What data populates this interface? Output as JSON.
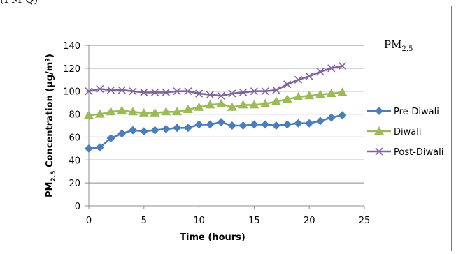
{
  "caption_fragment": "(PM Q)",
  "chart_data": {
    "type": "line",
    "title_main": "PM",
    "title_sub": "2.5",
    "xlabel": "Time (hours)",
    "ylabel_main": "PM",
    "ylabel_sub": "2.5",
    "ylabel_rest": " Concentration (µg/m³)",
    "xlim": [
      0,
      25
    ],
    "ylim": [
      0,
      140
    ],
    "xticks": [
      0,
      5,
      10,
      15,
      20,
      25
    ],
    "yticks": [
      0,
      20,
      40,
      60,
      80,
      100,
      120,
      140
    ],
    "grid": "horizontal",
    "legend_position": "right",
    "x": [
      0,
      1,
      2,
      3,
      4,
      5,
      6,
      7,
      8,
      9,
      10,
      11,
      12,
      13,
      14,
      15,
      16,
      17,
      18,
      19,
      20,
      21,
      22,
      23
    ],
    "series": [
      {
        "name": "Pre-Diwali",
        "color": "#4a7ebb",
        "marker": "diamond",
        "values": [
          50,
          51,
          59,
          63,
          66,
          65,
          66,
          67,
          68,
          68,
          71,
          71,
          73,
          70,
          70,
          71,
          71,
          70,
          71,
          72,
          72,
          74,
          77,
          79
        ]
      },
      {
        "name": "Diwali",
        "color": "#9bbb59",
        "marker": "triangle",
        "values": [
          79,
          80,
          82,
          83,
          82,
          81,
          81,
          82,
          82,
          84,
          86,
          88,
          89,
          86,
          88,
          88,
          89,
          91,
          93,
          95,
          96,
          97,
          98,
          99
        ]
      },
      {
        "name": "Post-Diwali",
        "color": "#8064a2",
        "marker": "x",
        "values": [
          100,
          102,
          101,
          101,
          100,
          99,
          99,
          99,
          100,
          100,
          98,
          97,
          96,
          98,
          99,
          100,
          100,
          101,
          106,
          110,
          113,
          117,
          120,
          122
        ]
      }
    ]
  }
}
